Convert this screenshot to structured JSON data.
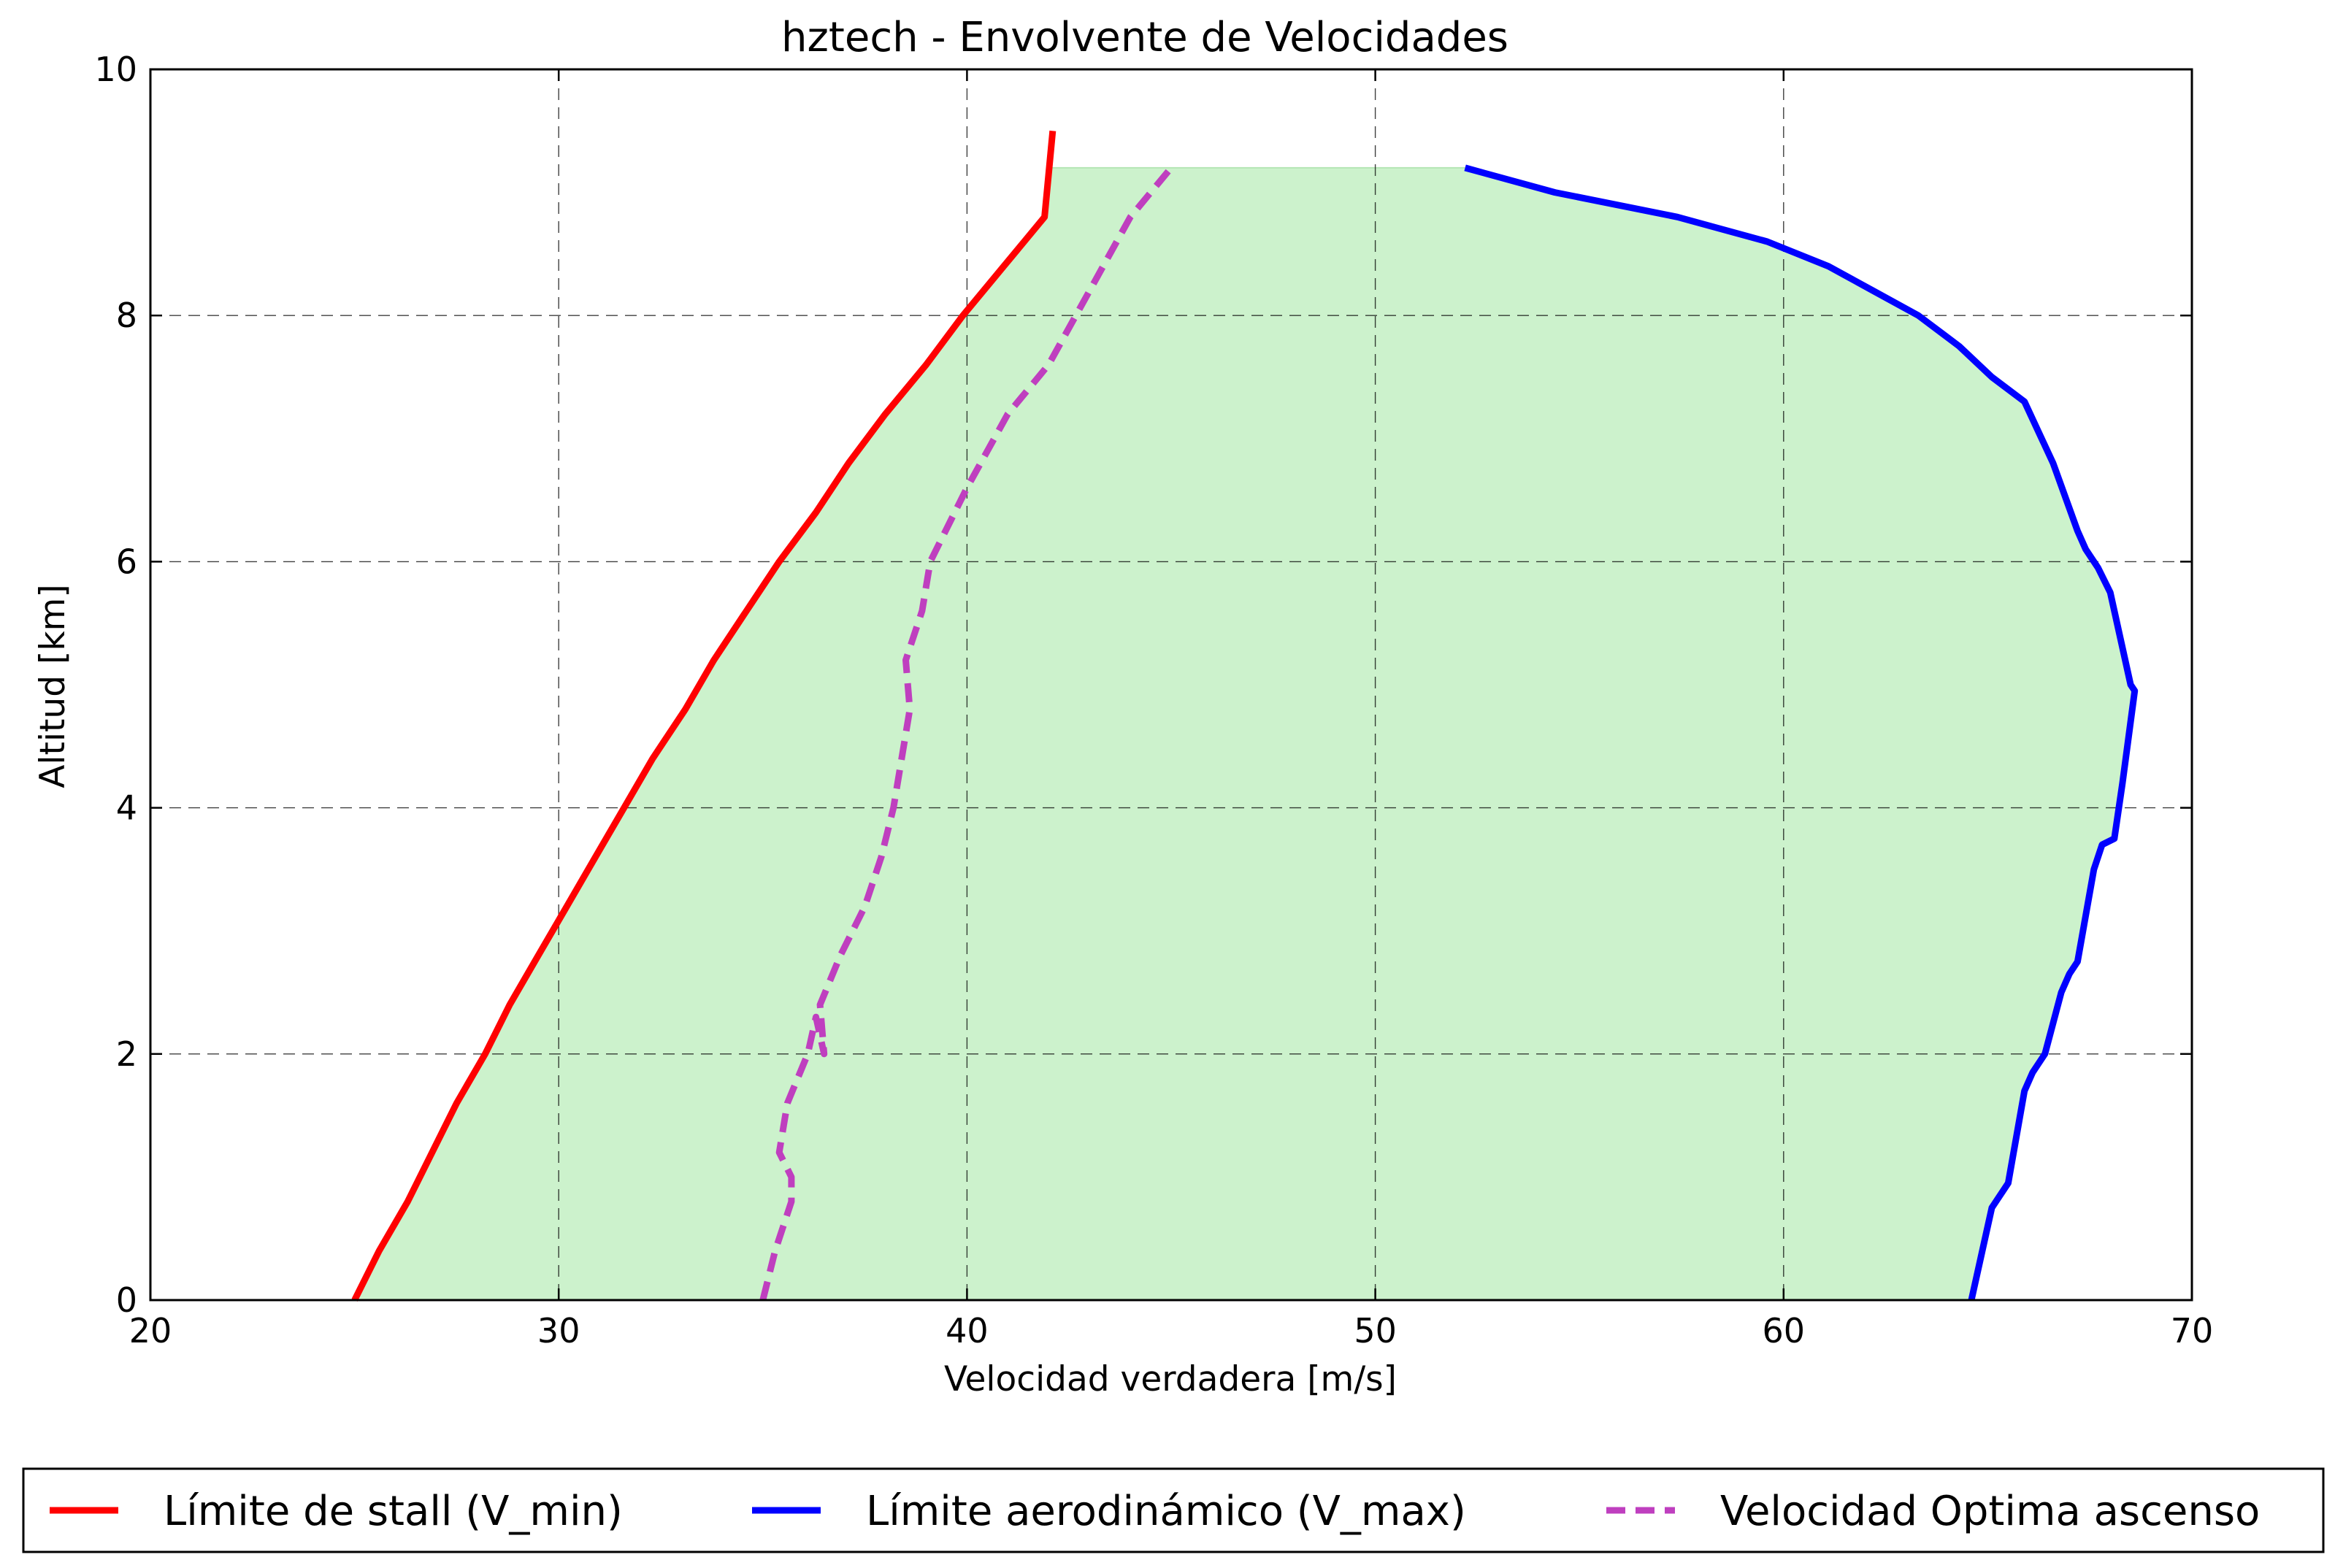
{
  "chart_data": {
    "type": "line",
    "title": "hztech - Envolvente de Velocidades",
    "xlabel": "Velocidad verdadera [m/s]",
    "ylabel": "Altitud [km]",
    "xlim": [
      20,
      70
    ],
    "ylim": [
      0,
      10
    ],
    "xticks": [
      20,
      30,
      40,
      50,
      60,
      70
    ],
    "yticks": [
      0,
      2,
      4,
      6,
      8,
      10
    ],
    "grid": true,
    "legend_position": "bottom",
    "fill_region": {
      "color": "#ccf2cc",
      "top_altitude": 9.2
    },
    "series": [
      {
        "name": "Límite de stall (V_min)",
        "color": "#ff0000",
        "style": "solid",
        "x": [
          25.0,
          25.6,
          26.3,
          26.9,
          27.5,
          28.2,
          28.8,
          29.5,
          30.2,
          30.9,
          31.6,
          32.3,
          33.1,
          33.8,
          34.6,
          35.4,
          36.3,
          37.1,
          38.0,
          39.0,
          39.9,
          40.9,
          41.9,
          42.1
        ],
        "y": [
          0,
          0.4,
          0.8,
          1.2,
          1.6,
          2.0,
          2.4,
          2.8,
          3.2,
          3.6,
          4.0,
          4.4,
          4.8,
          5.2,
          5.6,
          6.0,
          6.4,
          6.8,
          7.2,
          7.6,
          8.0,
          8.4,
          8.8,
          9.5
        ]
      },
      {
        "name": "Límite aerodinámico (V_max)",
        "color": "#0000ff",
        "style": "solid",
        "x": [
          64.6,
          65.1,
          65.5,
          65.9,
          66.1,
          66.4,
          66.8,
          67.0,
          67.2,
          67.6,
          67.8,
          68.1,
          68.3,
          68.6,
          68.5,
          68.0,
          67.7,
          67.4,
          67.2,
          66.6,
          65.9,
          65.1,
          64.3,
          63.3,
          62.2,
          61.1,
          59.6,
          57.4,
          54.4,
          52.2
        ],
        "y": [
          0,
          0.75,
          0.95,
          1.7,
          1.85,
          2.0,
          2.5,
          2.65,
          2.75,
          3.5,
          3.7,
          3.75,
          4.2,
          4.95,
          5.0,
          5.75,
          5.95,
          6.1,
          6.25,
          6.8,
          7.3,
          7.5,
          7.75,
          8.0,
          8.2,
          8.4,
          8.6,
          8.8,
          9.0,
          9.2
        ]
      },
      {
        "name": "Velocidad Optima ascenso",
        "color": "#bf3fbf",
        "style": "dashed",
        "x": [
          35.0,
          35.3,
          35.7,
          35.7,
          35.4,
          35.6,
          36.1,
          36.3,
          36.5,
          36.4,
          36.9,
          37.5,
          37.9,
          38.2,
          38.6,
          38.5,
          38.7,
          38.9,
          39.1,
          39.4,
          40.0,
          41.0,
          42.0,
          43.0,
          44.0,
          45.0
        ],
        "y": [
          0,
          0.4,
          0.8,
          1.0,
          1.2,
          1.6,
          2.0,
          2.3,
          2.0,
          2.4,
          2.8,
          3.2,
          3.6,
          4.0,
          4.8,
          5.2,
          5.4,
          5.6,
          6.0,
          6.2,
          6.6,
          7.2,
          7.6,
          8.2,
          8.8,
          9.2
        ]
      }
    ]
  }
}
